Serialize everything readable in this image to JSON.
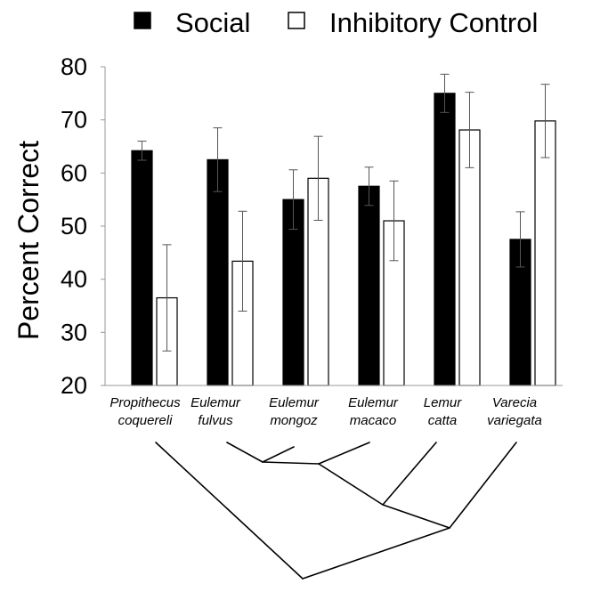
{
  "chart_data": {
    "type": "bar",
    "title": "",
    "xlabel": "",
    "ylabel": "Percent Correct",
    "ylim": [
      20,
      80
    ],
    "yticks": [
      20,
      30,
      40,
      50,
      60,
      70,
      80
    ],
    "legend_position": "top",
    "categories": [
      [
        "Propithecus",
        "coquereli"
      ],
      [
        "Eulemur",
        "fulvus"
      ],
      [
        "Eulemur",
        "mongoz"
      ],
      [
        "Eulemur",
        "macaco"
      ],
      [
        "Lemur",
        "catta"
      ],
      [
        "Varecia",
        "variegata"
      ]
    ],
    "series": [
      {
        "name": "Social",
        "color": "#000000",
        "values": [
          64.2,
          62.5,
          55,
          57.5,
          75,
          47.5
        ],
        "errors": [
          1.8,
          6,
          5.6,
          3.6,
          3.6,
          5.2
        ]
      },
      {
        "name": "Inhibitory Control",
        "color": "#ffffff",
        "values": [
          36.5,
          43.4,
          59,
          51,
          68.1,
          69.8
        ],
        "errors": [
          10,
          9.4,
          7.9,
          7.5,
          7.1,
          6.9
        ]
      }
    ],
    "phylogeny": {
      "leaves": [
        "Propithecus coquereli",
        "Eulemur fulvus",
        "Eulemur mongoz",
        "Eulemur macaco",
        "Lemur catta",
        "Varecia variegata"
      ],
      "topology": "(Propithecus coquereli, (Varecia variegata, (Lemur catta, ((Eulemur fulvus, Eulemur mongoz), Eulemur macaco))))"
    }
  }
}
